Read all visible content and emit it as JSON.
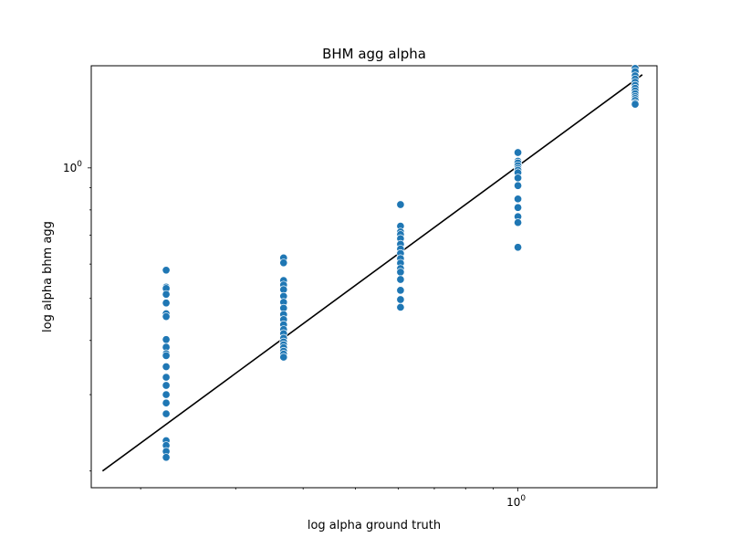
{
  "chart_data": {
    "type": "scatter",
    "title": "BHM agg alpha",
    "xlabel": "log alpha ground truth",
    "ylabel": "log alpha bhm agg",
    "xscale": "log",
    "yscale": "log",
    "xlim": [
      0.162,
      1.81
    ],
    "ylim": [
      0.183,
      1.72
    ],
    "xticks": [
      {
        "value": 1.0,
        "label": "10",
        "exp": "0"
      }
    ],
    "yticks": [
      {
        "value": 1.0,
        "label": "10",
        "exp": "0"
      }
    ],
    "grid": false,
    "colors": {
      "points": "#1f77b4",
      "line": "#000000",
      "point_edge": "#ffffff"
    },
    "reference_line": {
      "x": [
        0.17,
        1.7
      ],
      "y": [
        0.2,
        1.64
      ]
    },
    "series": [
      {
        "points": [
          [
            0.223,
            0.581
          ],
          [
            0.223,
            0.531
          ],
          [
            0.223,
            0.527
          ],
          [
            0.223,
            0.511
          ],
          [
            0.223,
            0.488
          ],
          [
            0.223,
            0.461
          ],
          [
            0.223,
            0.454
          ],
          [
            0.223,
            0.402
          ],
          [
            0.223,
            0.386
          ],
          [
            0.223,
            0.373
          ],
          [
            0.223,
            0.369
          ],
          [
            0.223,
            0.348
          ],
          [
            0.223,
            0.329
          ],
          [
            0.223,
            0.315
          ],
          [
            0.223,
            0.3
          ],
          [
            0.223,
            0.287
          ],
          [
            0.223,
            0.271
          ],
          [
            0.223,
            0.235
          ],
          [
            0.223,
            0.229
          ],
          [
            0.223,
            0.222
          ],
          [
            0.223,
            0.215
          ],
          [
            0.368,
            0.62
          ],
          [
            0.368,
            0.604
          ],
          [
            0.368,
            0.55
          ],
          [
            0.368,
            0.537
          ],
          [
            0.368,
            0.524
          ],
          [
            0.368,
            0.506
          ],
          [
            0.368,
            0.49
          ],
          [
            0.368,
            0.475
          ],
          [
            0.368,
            0.459
          ],
          [
            0.368,
            0.447
          ],
          [
            0.368,
            0.435
          ],
          [
            0.368,
            0.424
          ],
          [
            0.368,
            0.415
          ],
          [
            0.368,
            0.405
          ],
          [
            0.368,
            0.397
          ],
          [
            0.368,
            0.391
          ],
          [
            0.368,
            0.385
          ],
          [
            0.368,
            0.378
          ],
          [
            0.368,
            0.372
          ],
          [
            0.368,
            0.366
          ],
          [
            0.606,
            0.823
          ],
          [
            0.606,
            0.734
          ],
          [
            0.606,
            0.712
          ],
          [
            0.606,
            0.702
          ],
          [
            0.606,
            0.687
          ],
          [
            0.606,
            0.667
          ],
          [
            0.606,
            0.65
          ],
          [
            0.606,
            0.635
          ],
          [
            0.606,
            0.618
          ],
          [
            0.606,
            0.603
          ],
          [
            0.606,
            0.586
          ],
          [
            0.606,
            0.575
          ],
          [
            0.606,
            0.553
          ],
          [
            0.606,
            0.522
          ],
          [
            0.606,
            0.497
          ],
          [
            0.606,
            0.477
          ],
          [
            1.0,
            1.085
          ],
          [
            1.0,
            1.036
          ],
          [
            1.0,
            1.027
          ],
          [
            1.0,
            1.012
          ],
          [
            1.0,
            0.998
          ],
          [
            1.0,
            0.988
          ],
          [
            1.0,
            0.975
          ],
          [
            1.0,
            0.948
          ],
          [
            1.0,
            0.91
          ],
          [
            1.0,
            0.848
          ],
          [
            1.0,
            0.81
          ],
          [
            1.0,
            0.772
          ],
          [
            1.0,
            0.748
          ],
          [
            1.0,
            0.656
          ],
          [
            1.649,
            1.696
          ],
          [
            1.649,
            1.668
          ],
          [
            1.649,
            1.631
          ],
          [
            1.649,
            1.602
          ],
          [
            1.649,
            1.576
          ],
          [
            1.649,
            1.551
          ],
          [
            1.649,
            1.527
          ],
          [
            1.649,
            1.505
          ],
          [
            1.649,
            1.483
          ],
          [
            1.649,
            1.462
          ],
          [
            1.649,
            1.446
          ],
          [
            1.649,
            1.431
          ],
          [
            1.649,
            1.41
          ],
          [
            1.649,
            1.402
          ]
        ]
      }
    ]
  }
}
